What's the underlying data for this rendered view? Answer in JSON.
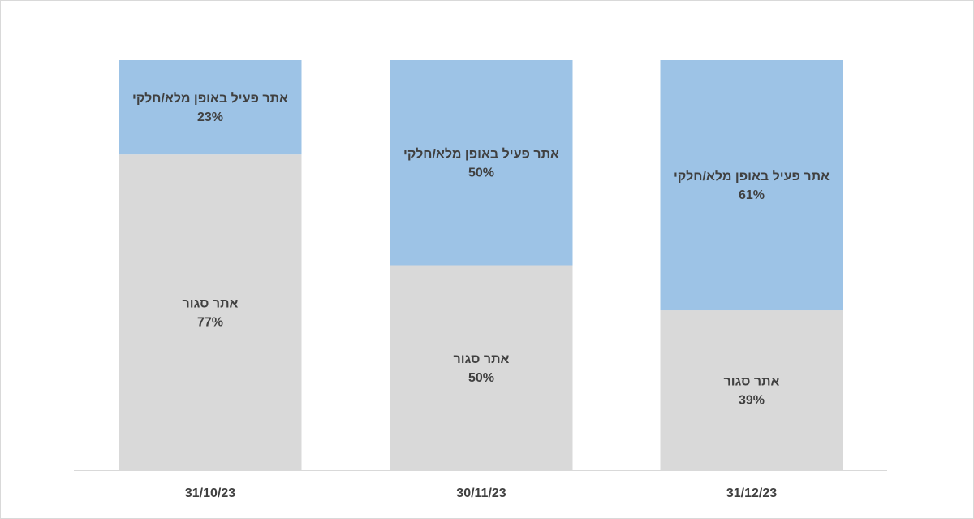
{
  "chart_data": {
    "type": "bar",
    "stacked": true,
    "percent": true,
    "categories": [
      "31/10/23",
      "30/11/23",
      "31/12/23"
    ],
    "ylim": [
      0,
      100
    ],
    "grid": false,
    "legend": "none",
    "series": [
      {
        "name": "אתר סגור",
        "values": [
          77,
          50,
          39
        ],
        "labels": [
          "77%",
          "50%",
          "39%"
        ],
        "color": "#d9d9d9"
      },
      {
        "name": "אתר פעיל באופן מלא/חלקי",
        "values": [
          23,
          50,
          61
        ],
        "labels": [
          "23%",
          "50%",
          "61%"
        ],
        "color": "#9dc3e6"
      }
    ],
    "label_color": "#404040",
    "axis_color": "#d9d9d9"
  }
}
